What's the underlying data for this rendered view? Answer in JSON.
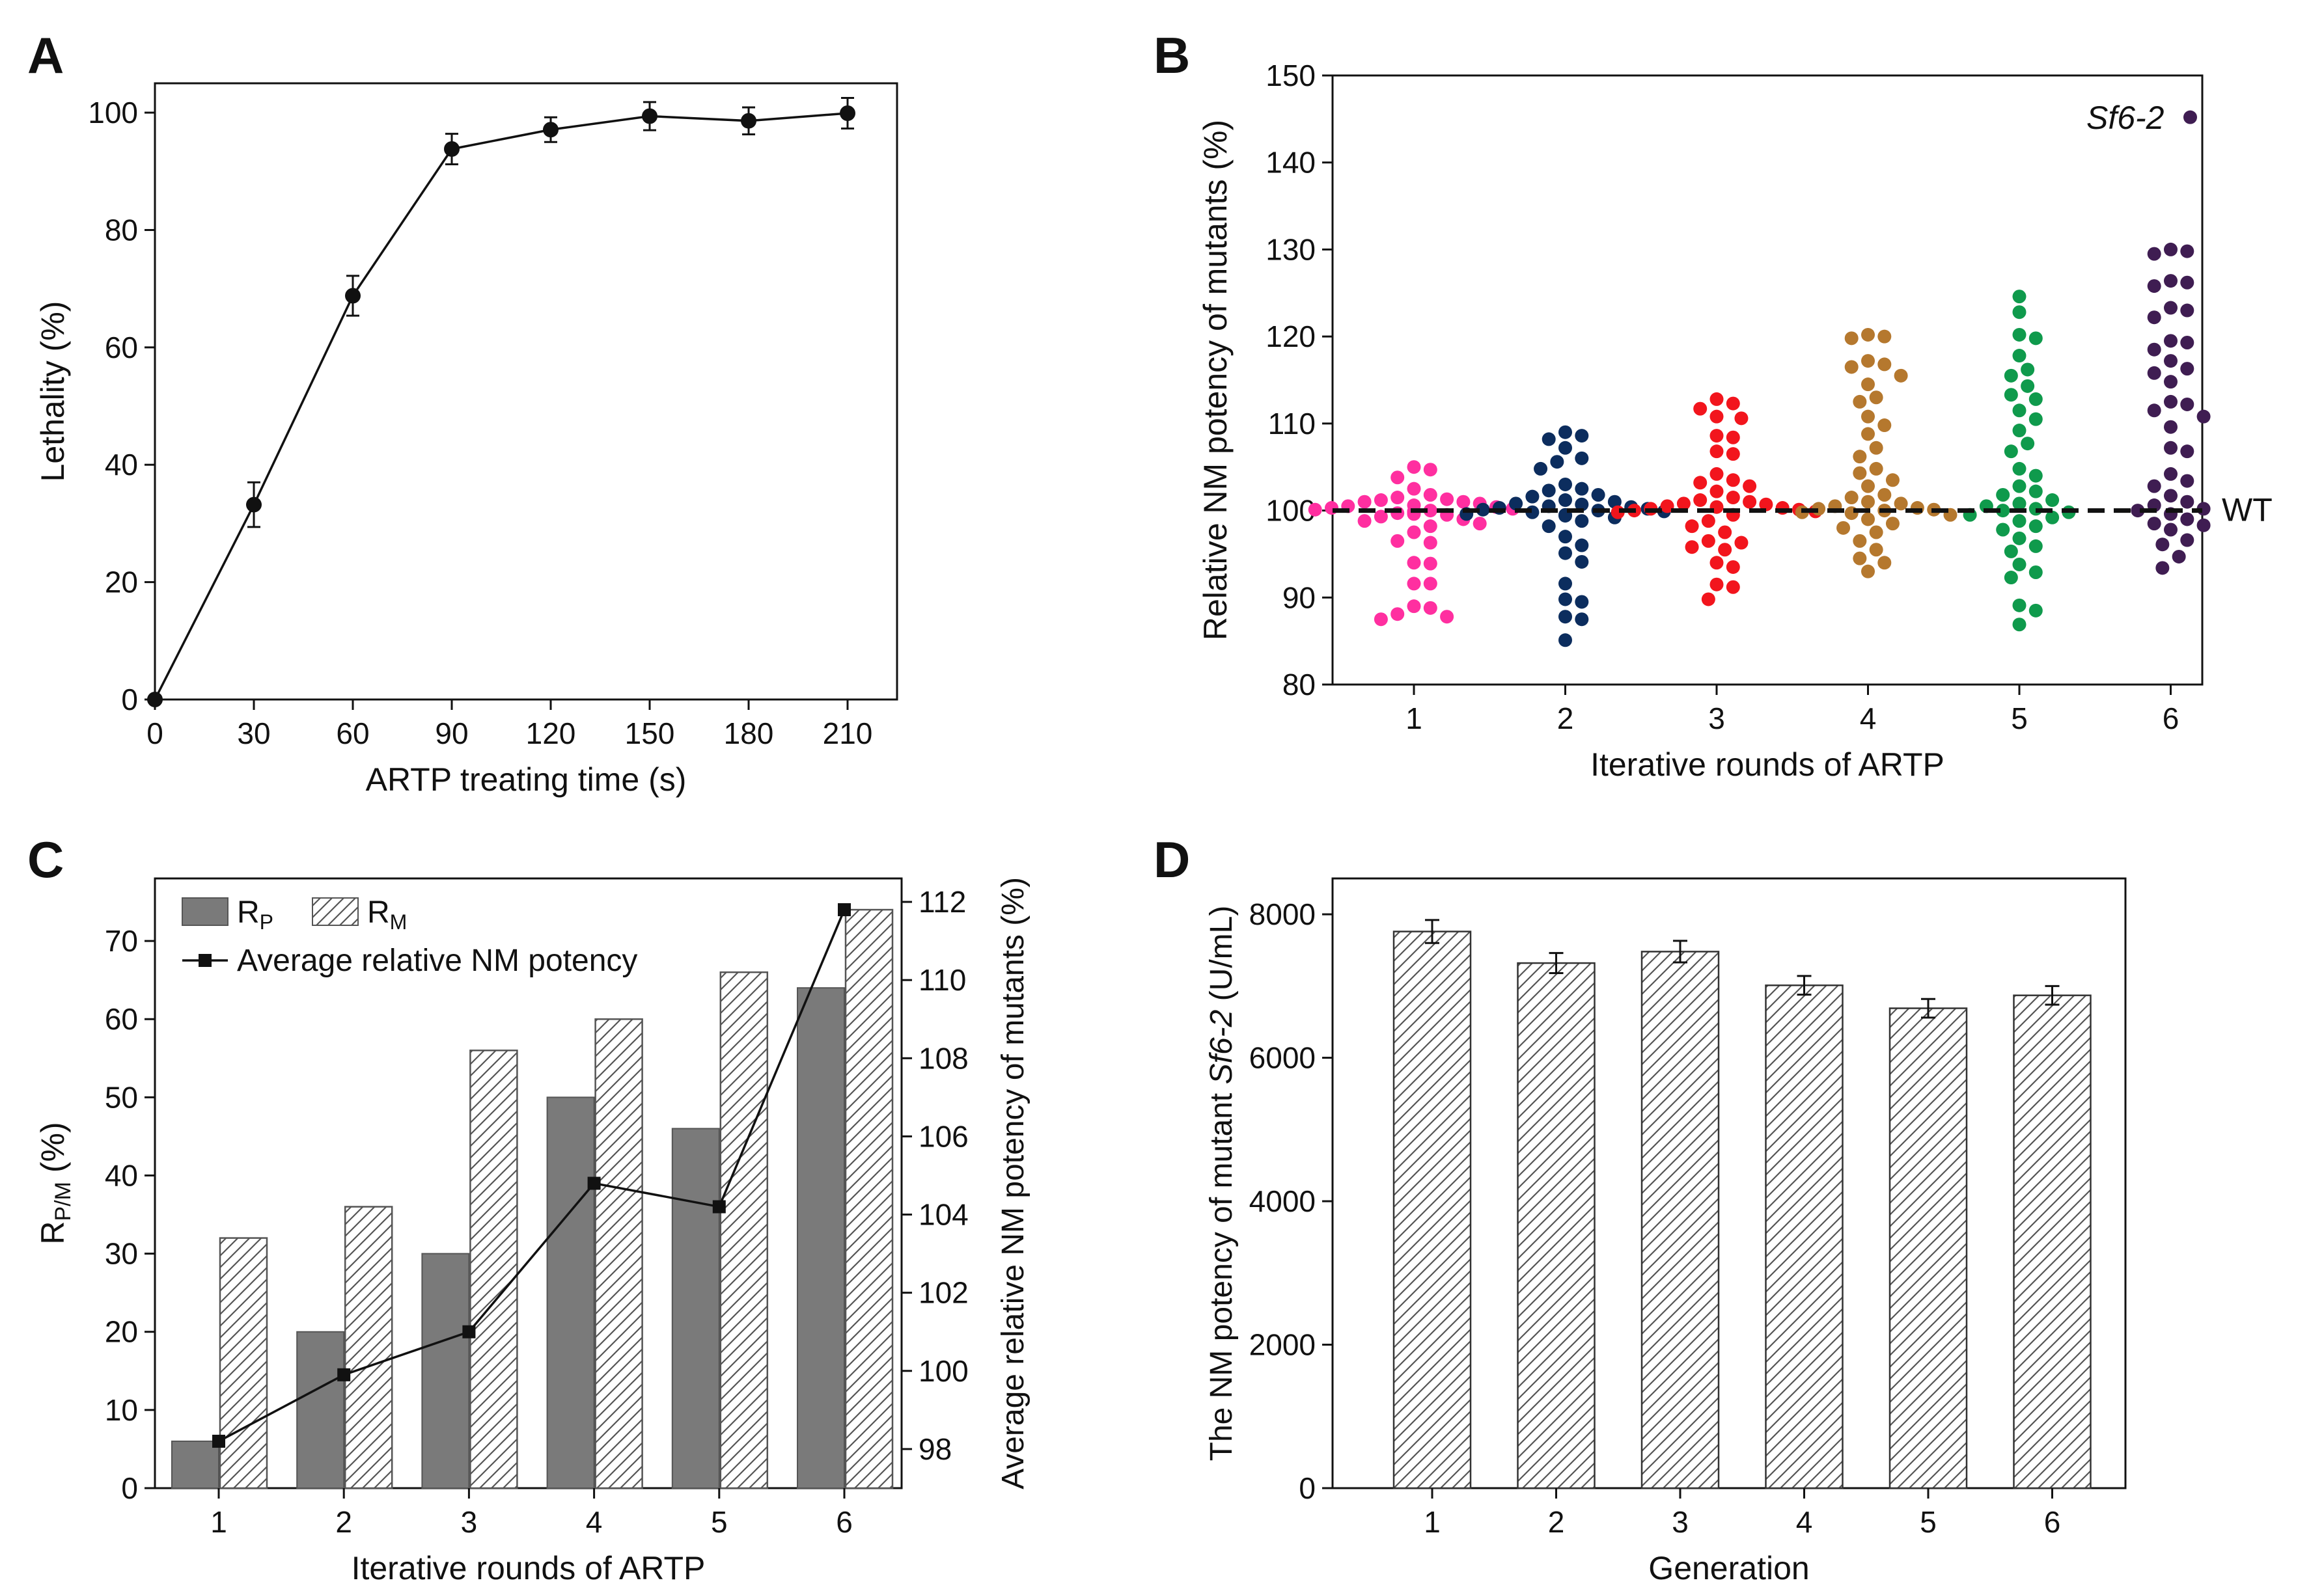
{
  "figure_panels": [
    "A",
    "B",
    "C",
    "D"
  ],
  "colors": {
    "line": "#111111",
    "bar_rp": "#7a7a7a",
    "hatch": "#555555",
    "round1": "#ff2fa0",
    "round2": "#0c2d5e",
    "round3": "#f2151d",
    "round4": "#b5782e",
    "round5": "#0f9a4c",
    "round6": "#3f1d52"
  },
  "chart_data": [
    {
      "panel": "A",
      "type": "line",
      "xlabel": "ARTP treating time (s)",
      "ylabel": "Lethality (%)",
      "x": [
        0,
        30,
        60,
        90,
        120,
        150,
        180,
        210
      ],
      "y": [
        0,
        33.2,
        68.8,
        93.8,
        97.1,
        99.4,
        98.6,
        99.9
      ],
      "error": [
        0,
        3.8,
        3.4,
        2.6,
        2.1,
        2.4,
        2.3,
        2.6
      ],
      "xlim": [
        0,
        225
      ],
      "ylim": [
        0,
        105
      ],
      "xticks": [
        0,
        30,
        60,
        90,
        120,
        150,
        180,
        210
      ],
      "yticks": [
        0,
        20,
        40,
        60,
        80,
        100
      ]
    },
    {
      "panel": "B",
      "type": "scatter",
      "xlabel": "Iterative rounds of ARTP",
      "ylabel": "Relative NM potency of mutants (%)",
      "ylim": [
        80,
        150
      ],
      "yticks": [
        80,
        90,
        100,
        110,
        120,
        130,
        140,
        150
      ],
      "categories": [
        "1",
        "2",
        "3",
        "4",
        "5",
        "6"
      ],
      "reference_line": {
        "y": 100,
        "label": "WT"
      },
      "annotation": {
        "label": "Sf6-2",
        "round": "6",
        "y": 145.2
      },
      "series": [
        {
          "name": "1",
          "values": [
            105,
            104.7,
            103.8,
            102.5,
            101.8,
            101.5,
            101.3,
            101.2,
            101,
            101,
            100.8,
            100.6,
            100.5,
            100.4,
            100.3,
            100.2,
            100.1,
            100,
            99.9,
            99.8,
            99.7,
            99.6,
            99.5,
            99.3,
            99,
            98.8,
            98.5,
            98.2,
            97.5,
            96.5,
            96.3,
            94,
            93.9,
            91.6,
            91.6,
            89,
            88.8,
            88.1,
            87.8,
            87.5
          ]
        },
        {
          "name": "2",
          "values": [
            109,
            108.6,
            108.2,
            107.2,
            106,
            105.6,
            104.8,
            103,
            102.5,
            102.3,
            101.8,
            101.6,
            101.2,
            101,
            100.8,
            100.7,
            100.5,
            100.4,
            100.3,
            100.2,
            100.1,
            100,
            99.9,
            99.8,
            99.6,
            99.5,
            99.4,
            99.2,
            98.8,
            98.2,
            97,
            96,
            95.1,
            94.1,
            91.6,
            89.8,
            89.5,
            87.8,
            87.5,
            85.1
          ]
        },
        {
          "name": "3",
          "values": [
            112.8,
            112.3,
            111.7,
            110.8,
            110.6,
            108.6,
            108.4,
            106.8,
            106.5,
            104.2,
            103.5,
            103.2,
            102.8,
            102.2,
            101.5,
            101.2,
            101,
            100.8,
            100.7,
            100.5,
            100.4,
            100.3,
            100.2,
            100.1,
            100,
            99.9,
            99.8,
            99.5,
            98.8,
            98.2,
            97.5,
            96.5,
            96.3,
            95.8,
            95.5,
            94,
            93.5,
            91.5,
            91.2,
            89.8
          ]
        },
        {
          "name": "4",
          "values": [
            120.2,
            120,
            119.8,
            117.2,
            116.8,
            116.5,
            115.5,
            114.5,
            113,
            112.5,
            110.8,
            109.8,
            108.8,
            107.2,
            106.2,
            104.8,
            104.3,
            103.5,
            102.8,
            101.8,
            101.5,
            101,
            100.8,
            100.5,
            100.3,
            100.2,
            100.1,
            100,
            99.8,
            99.7,
            99.5,
            99,
            98.5,
            98,
            97.5,
            96.5,
            95.5,
            94.5,
            94,
            93
          ]
        },
        {
          "name": "5",
          "values": [
            124.6,
            122.8,
            120.2,
            119.8,
            117.8,
            116.2,
            115.5,
            114.3,
            113.3,
            112.8,
            111.5,
            110.5,
            109.2,
            107.7,
            106.8,
            104.8,
            104,
            102.8,
            102.2,
            101.8,
            101.2,
            100.8,
            100.5,
            100.2,
            100,
            99.8,
            99.5,
            99.2,
            98.8,
            98.2,
            97.8,
            96.8,
            95.9,
            95.3,
            93.8,
            92.9,
            92.3,
            89.1,
            88.5,
            86.9
          ]
        },
        {
          "name": "6",
          "values": [
            145.2,
            130,
            129.8,
            129.5,
            126.4,
            126.2,
            125.8,
            123.3,
            123,
            122.2,
            119.5,
            119.3,
            118.5,
            117.2,
            116.3,
            115.8,
            114.8,
            112.5,
            112.2,
            111.5,
            110.8,
            109.6,
            107.2,
            106.8,
            104.2,
            103.4,
            102.8,
            101.7,
            101,
            100.6,
            100.2,
            100,
            99.6,
            99,
            98.5,
            98.3,
            97.8,
            96.6,
            96.1,
            94.7,
            93.4
          ]
        }
      ]
    },
    {
      "panel": "C",
      "type": "bar",
      "xlabel": "Iterative rounds of ARTP",
      "ylabel": "R",
      "ylabel_sub": "P/M",
      "ylabel_suffix": " (%)",
      "y2label": "Average relative NM potency of mutants (%)",
      "categories": [
        "1",
        "2",
        "3",
        "4",
        "5",
        "6"
      ],
      "ylim": [
        0,
        78
      ],
      "yticks": [
        0,
        10,
        20,
        30,
        40,
        50,
        60,
        70
      ],
      "y2lim": [
        97,
        112.6
      ],
      "y2ticks": [
        98,
        100,
        102,
        104,
        106,
        108,
        110,
        112
      ],
      "legend": [
        {
          "label": "R",
          "sub": "P"
        },
        {
          "label": "R",
          "sub": "M"
        },
        {
          "label": "Average relative NM potency"
        }
      ],
      "series": [
        {
          "name": "R_P",
          "values": [
            6,
            20,
            30,
            50,
            46,
            64
          ]
        },
        {
          "name": "R_M",
          "values": [
            32,
            36,
            56,
            60,
            66,
            74
          ]
        },
        {
          "name": "Average relative NM potency",
          "axis": "right",
          "values": [
            98.2,
            99.9,
            101,
            104.8,
            104.2,
            111.8
          ]
        }
      ]
    },
    {
      "panel": "D",
      "type": "bar",
      "xlabel": "Generation",
      "ylabel_prefix": "The NM potency of mutant ",
      "ylabel_italic": "Sf6-2",
      "ylabel_suffix": " (U/mL)",
      "categories": [
        "1",
        "2",
        "3",
        "4",
        "5",
        "6"
      ],
      "values": [
        7760,
        7320,
        7480,
        7010,
        6690,
        6870
      ],
      "error": [
        160,
        140,
        150,
        130,
        130,
        130
      ],
      "ylim": [
        0,
        8500
      ],
      "yticks": [
        0,
        2000,
        4000,
        6000,
        8000
      ]
    }
  ]
}
